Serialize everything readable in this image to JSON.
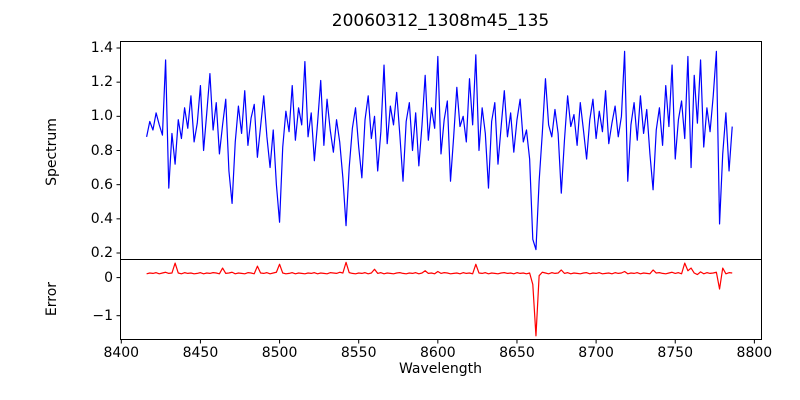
{
  "figure": {
    "background": "#ffffff",
    "text_color": "#000000"
  },
  "chart_data": [
    {
      "id": "spectrum-panel",
      "type": "line",
      "title": "20060312_1308m45_135",
      "ylabel": "Spectrum",
      "line_color": "#0000ff",
      "xlim": [
        8399.5,
        8804.5
      ],
      "ylim": [
        0.162,
        1.438
      ],
      "yticks": [
        0.2,
        0.4,
        0.6,
        0.8,
        1.0,
        1.2,
        1.4
      ],
      "ytick_labels": [
        "0.2",
        "0.4",
        "0.6",
        "0.8",
        "1.0",
        "1.2",
        "1.4"
      ],
      "grid": false,
      "legend": null,
      "x_start": 8416,
      "x_step": 2,
      "values": [
        0.88,
        0.97,
        0.92,
        1.02,
        0.95,
        0.89,
        1.33,
        0.58,
        0.9,
        0.72,
        0.98,
        0.87,
        1.05,
        0.93,
        1.12,
        0.85,
        0.96,
        1.18,
        0.8,
        1.02,
        1.25,
        0.92,
        1.08,
        0.78,
        0.95,
        1.1,
        0.68,
        0.49,
        0.85,
        1.06,
        0.9,
        1.15,
        0.83,
        0.99,
        1.07,
        0.76,
        0.94,
        1.12,
        0.88,
        0.7,
        0.92,
        0.6,
        0.38,
        0.82,
        1.03,
        0.91,
        1.18,
        0.86,
        1.05,
        0.95,
        1.32,
        0.88,
        1.02,
        0.74,
        0.96,
        1.21,
        0.83,
        1.1,
        0.92,
        0.79,
        0.98,
        0.85,
        0.64,
        0.36,
        0.7,
        0.93,
        1.05,
        0.82,
        0.64,
        0.98,
        1.12,
        0.87,
        1.0,
        0.68,
        0.91,
        1.3,
        0.84,
        1.06,
        0.95,
        1.14,
        0.89,
        0.62,
        0.97,
        1.08,
        0.8,
        1.02,
        0.71,
        0.95,
        1.24,
        0.86,
        1.05,
        0.93,
        1.35,
        0.78,
        0.98,
        1.09,
        0.62,
        0.88,
        1.17,
        0.94,
        1.0,
        0.85,
        1.22,
        0.95,
        1.36,
        0.8,
        1.05,
        0.9,
        0.58,
        0.97,
        1.08,
        0.72,
        0.94,
        1.15,
        0.88,
        1.02,
        0.79,
        0.98,
        1.1,
        0.85,
        0.92,
        0.75,
        0.28,
        0.22,
        0.62,
        0.9,
        1.22,
        0.95,
        0.88,
        1.04,
        0.9,
        0.55,
        0.86,
        1.12,
        0.94,
        1.01,
        0.83,
        1.08,
        0.92,
        0.75,
        0.98,
        1.1,
        0.87,
        1.03,
        0.91,
        1.15,
        0.84,
        0.96,
        1.06,
        0.88,
        1.0,
        1.38,
        0.62,
        0.95,
        1.08,
        0.86,
        1.12,
        0.9,
        1.04,
        0.78,
        0.57,
        0.92,
        1.05,
        0.83,
        1.18,
        0.94,
        1.3,
        0.75,
        0.98,
        1.09,
        0.87,
        1.35,
        0.7,
        1.24,
        0.96,
        1.33,
        0.82,
        1.05,
        0.91,
        1.12,
        1.38,
        0.37,
        0.78,
        1.02,
        0.68,
        0.94
      ]
    },
    {
      "id": "error-panel",
      "type": "line",
      "ylabel": "Error",
      "xlabel": "Wavelength",
      "line_color": "#ff0000",
      "xlim": [
        8399.5,
        8804.5
      ],
      "ylim": [
        -1.625,
        0.475
      ],
      "yticks": [
        0,
        -1
      ],
      "ytick_labels": [
        "0",
        "−1"
      ],
      "xticks": [
        8400,
        8450,
        8500,
        8550,
        8600,
        8650,
        8700,
        8750,
        8800
      ],
      "xtick_labels": [
        "8400",
        "8450",
        "8500",
        "8550",
        "8600",
        "8650",
        "8700",
        "8750",
        "8800"
      ],
      "grid": false,
      "legend": null,
      "x_start": 8416,
      "x_step": 2,
      "values": [
        0.1,
        0.12,
        0.11,
        0.13,
        0.1,
        0.12,
        0.14,
        0.11,
        0.12,
        0.38,
        0.12,
        0.1,
        0.13,
        0.11,
        0.12,
        0.1,
        0.11,
        0.13,
        0.1,
        0.12,
        0.11,
        0.13,
        0.12,
        0.1,
        0.25,
        0.11,
        0.12,
        0.14,
        0.1,
        0.12,
        0.11,
        0.1,
        0.13,
        0.12,
        0.1,
        0.3,
        0.12,
        0.11,
        0.13,
        0.1,
        0.12,
        0.14,
        0.35,
        0.12,
        0.1,
        0.11,
        0.13,
        0.1,
        0.12,
        0.11,
        0.1,
        0.12,
        0.11,
        0.13,
        0.1,
        0.12,
        0.11,
        0.1,
        0.13,
        0.12,
        0.11,
        0.14,
        0.12,
        0.4,
        0.13,
        0.11,
        0.1,
        0.12,
        0.11,
        0.13,
        0.1,
        0.12,
        0.22,
        0.11,
        0.13,
        0.1,
        0.12,
        0.11,
        0.1,
        0.12,
        0.13,
        0.11,
        0.1,
        0.12,
        0.11,
        0.13,
        0.1,
        0.12,
        0.18,
        0.11,
        0.12,
        0.1,
        0.16,
        0.11,
        0.13,
        0.12,
        0.1,
        0.11,
        0.12,
        0.1,
        0.13,
        0.11,
        0.12,
        0.1,
        0.35,
        0.12,
        0.11,
        0.13,
        0.1,
        0.12,
        0.11,
        0.1,
        0.12,
        0.13,
        0.11,
        0.12,
        0.1,
        0.13,
        0.11,
        0.12,
        0.1,
        0.12,
        -0.18,
        -1.53,
        0.05,
        0.14,
        0.12,
        0.1,
        0.13,
        0.11,
        0.12,
        0.2,
        0.11,
        0.13,
        0.1,
        0.12,
        0.11,
        0.1,
        0.12,
        0.13,
        0.1,
        0.12,
        0.11,
        0.13,
        0.1,
        0.11,
        0.12,
        0.1,
        0.13,
        0.11,
        0.12,
        0.16,
        0.1,
        0.12,
        0.11,
        0.13,
        0.1,
        0.12,
        0.11,
        0.1,
        0.2,
        0.12,
        0.13,
        0.11,
        0.1,
        0.12,
        0.14,
        0.11,
        0.13,
        0.1,
        0.38,
        0.18,
        0.25,
        0.12,
        0.08,
        0.15,
        0.1,
        0.13,
        0.11,
        0.12,
        0.14,
        -0.3,
        0.25,
        0.1,
        0.13,
        0.12
      ]
    }
  ]
}
